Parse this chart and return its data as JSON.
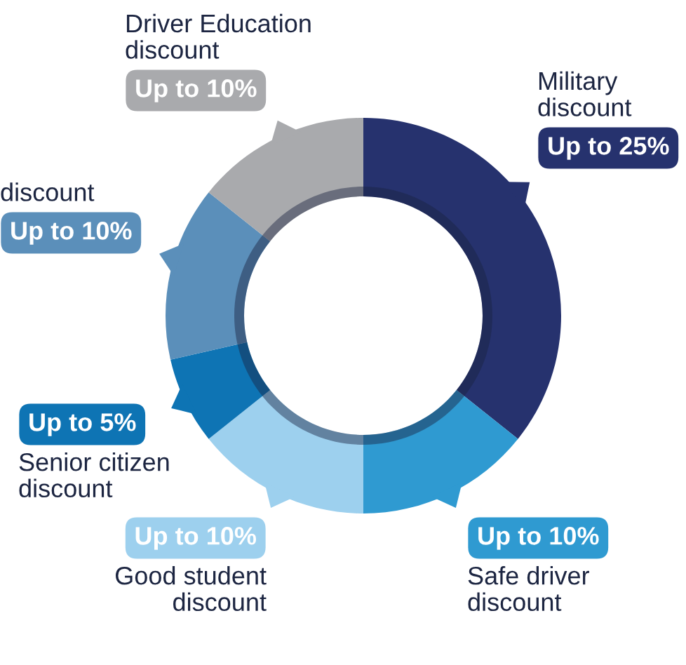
{
  "chart_data": {
    "type": "donut",
    "categories": [
      "Military discount",
      "Safe driver discount",
      "Good student discount",
      "Senior citizen discount",
      "discount",
      "Driver Education discount"
    ],
    "values": [
      25,
      10,
      10,
      5,
      10,
      10
    ],
    "colors": [
      "#26326e",
      "#2f9ad1",
      "#9dd0ee",
      "#0e74b4",
      "#5b8fba",
      "#a9aaad"
    ],
    "value_labels": [
      "Up to 25%",
      "Up to 10%",
      "Up to 10%",
      "Up to 5%",
      "Up to 10%",
      "Up to 10%"
    ]
  }
}
